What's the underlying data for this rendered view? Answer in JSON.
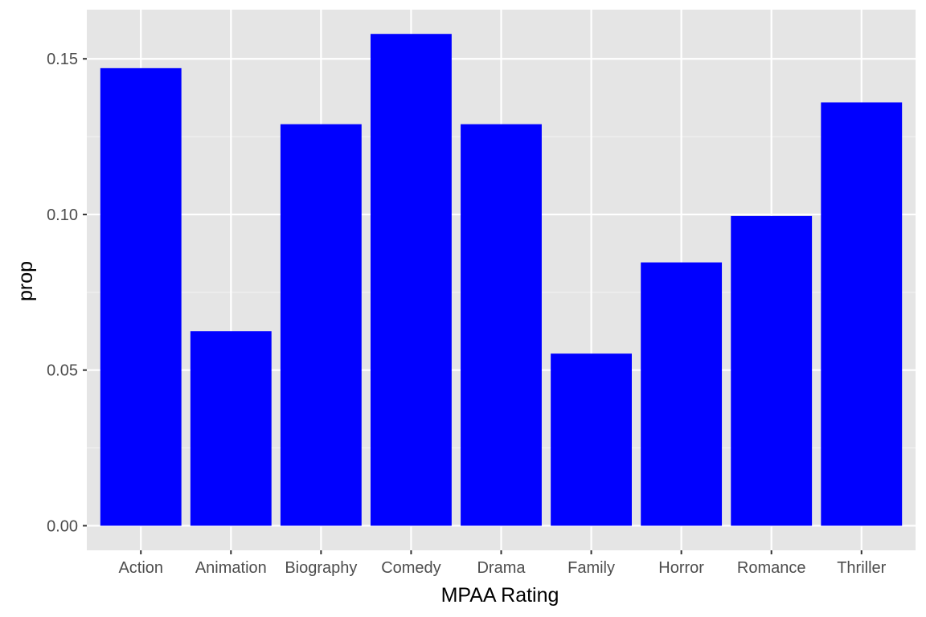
{
  "chart_data": {
    "type": "bar",
    "title": "",
    "xlabel": "MPAA Rating",
    "ylabel": "prop",
    "categories": [
      "Action",
      "Animation",
      "Biography",
      "Comedy",
      "Drama",
      "Family",
      "Horror",
      "Romance",
      "Thriller"
    ],
    "values": [
      0.147,
      0.0625,
      0.129,
      0.158,
      0.129,
      0.0553,
      0.0846,
      0.0995,
      0.136
    ],
    "ylim": [
      -0.0079,
      0.1658
    ],
    "yticks": [
      0,
      0.05,
      0.1,
      0.15
    ],
    "ytick_labels": [
      "0.00",
      "0.05",
      "0.10",
      "0.15"
    ],
    "grid": true,
    "legend": "none",
    "colors": {
      "bar": "#0000FF",
      "panel_background": "#E5E5E5",
      "grid_major": "#FFFFFF",
      "grid_minor": "#F2F2F2",
      "tick_text": "#4D4D4D",
      "tick_mark": "#333333",
      "axis_title": "#000000"
    }
  }
}
